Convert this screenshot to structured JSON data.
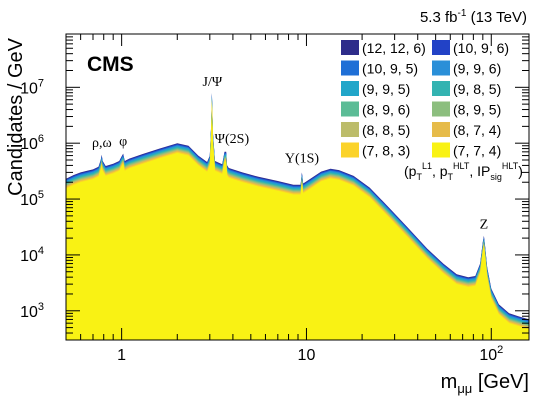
{
  "chart_data": {
    "type": "area",
    "experiment": "CMS",
    "lumi": {
      "value": "5.3 fb",
      "exponent": "-1",
      "energy": "(13 TeV)"
    },
    "xlabel": "m",
    "xlabel_sub": "μμ",
    "xlabel_unit": "[GeV]",
    "ylabel": "Candidates / GeV",
    "xscale": "log",
    "yscale": "log",
    "xlim": [
      0.5,
      160
    ],
    "ylim": [
      300,
      90000000
    ],
    "x_ticks": [
      {
        "value": 1,
        "label": "1"
      },
      {
        "value": 10,
        "label": "10"
      },
      {
        "value": 100,
        "label": "10",
        "exp": "2"
      }
    ],
    "y_ticks": [
      {
        "value": 1000,
        "label": "10",
        "exp": "3"
      },
      {
        "value": 10000,
        "label": "10",
        "exp": "4"
      },
      {
        "value": 100000,
        "label": "10",
        "exp": "5"
      },
      {
        "value": 1000000,
        "label": "10",
        "exp": "6"
      },
      {
        "value": 10000000,
        "label": "10",
        "exp": "7"
      }
    ],
    "legend_placement": "top-right",
    "legend_title": [
      "(p",
      "T",
      "L1",
      ", p",
      "T",
      "HLT",
      ", IP",
      "sig",
      "HLT",
      ")"
    ],
    "series": [
      {
        "name": "(12, 12, 6)",
        "color": "#2e2c8a",
        "frac": 1.0
      },
      {
        "name": "(10, 9, 6)",
        "color": "#2242c6",
        "frac": 0.97
      },
      {
        "name": "(10, 9, 5)",
        "color": "#1f6fd6",
        "frac": 0.94
      },
      {
        "name": "(9, 9, 6)",
        "color": "#2a8fd8",
        "frac": 0.91
      },
      {
        "name": "(9, 9, 5)",
        "color": "#21a6c9",
        "frac": 0.88
      },
      {
        "name": "(9, 8, 5)",
        "color": "#33b3b1",
        "frac": 0.85
      },
      {
        "name": "(8, 9, 6)",
        "color": "#5bbc96",
        "frac": 0.82
      },
      {
        "name": "(8, 9, 5)",
        "color": "#8cbe7e",
        "frac": 0.79
      },
      {
        "name": "(8, 8, 5)",
        "color": "#bcbc6a",
        "frac": 0.76
      },
      {
        "name": "(8, 7, 4)",
        "color": "#e6bb49",
        "frac": 0.73
      },
      {
        "name": "(7, 8, 3)",
        "color": "#fbd32a",
        "frac": 0.7
      },
      {
        "name": "(7, 7, 4)",
        "color": "#f9f214",
        "frac": 0.67
      }
    ],
    "envelope": [
      [
        0.5,
        230000
      ],
      [
        0.55,
        270000
      ],
      [
        0.6,
        300000
      ],
      [
        0.65,
        320000
      ],
      [
        0.7,
        340000
      ],
      [
        0.75,
        380000
      ],
      [
        0.77,
        500000
      ],
      [
        0.78,
        620000
      ],
      [
        0.79,
        480000
      ],
      [
        0.82,
        390000
      ],
      [
        0.9,
        430000
      ],
      [
        0.97,
        480000
      ],
      [
        1.0,
        580000
      ],
      [
        1.02,
        650000
      ],
      [
        1.04,
        480000
      ],
      [
        1.1,
        530000
      ],
      [
        1.3,
        640000
      ],
      [
        1.6,
        800000
      ],
      [
        2.0,
        1000000
      ],
      [
        2.3,
        900000
      ],
      [
        2.6,
        600000
      ],
      [
        2.9,
        460000
      ],
      [
        3.0,
        600000
      ],
      [
        3.05,
        2000000
      ],
      [
        3.08,
        8000000
      ],
      [
        3.12,
        1500000
      ],
      [
        3.2,
        480000
      ],
      [
        3.5,
        420000
      ],
      [
        3.6,
        700000
      ],
      [
        3.68,
        700000
      ],
      [
        3.72,
        400000
      ],
      [
        3.8,
        360000
      ],
      [
        4.5,
        300000
      ],
      [
        5.5,
        250000
      ],
      [
        7.0,
        210000
      ],
      [
        8.5,
        180000
      ],
      [
        9.3,
        180000
      ],
      [
        9.45,
        300000
      ],
      [
        9.6,
        190000
      ],
      [
        10.5,
        230000
      ],
      [
        12.0,
        310000
      ],
      [
        13.5,
        350000
      ],
      [
        15.0,
        330000
      ],
      [
        18.0,
        260000
      ],
      [
        22.0,
        160000
      ],
      [
        28.0,
        70000
      ],
      [
        35.0,
        32000
      ],
      [
        45.0,
        13000
      ],
      [
        55.0,
        7000
      ],
      [
        65.0,
        4500
      ],
      [
        75.0,
        4000
      ],
      [
        82.0,
        4200
      ],
      [
        87.0,
        7000
      ],
      [
        90.0,
        17000
      ],
      [
        91.2,
        22000
      ],
      [
        92.5,
        15000
      ],
      [
        95.0,
        6000
      ],
      [
        100.0,
        2500
      ],
      [
        110.0,
        1300
      ],
      [
        125.0,
        900
      ],
      [
        140.0,
        800
      ],
      [
        160.0,
        700
      ]
    ],
    "annotations": [
      {
        "text": "ρ,ω",
        "x": 0.782,
        "y": 850000
      },
      {
        "text": "φ",
        "x": 1.02,
        "y": 900000
      },
      {
        "text": "J/Ψ",
        "x": 3.097,
        "y": 10500000
      },
      {
        "text": "Ψ(2S)",
        "x": 3.95,
        "y": 1000000
      },
      {
        "text": "Υ(1S)",
        "x": 9.46,
        "y": 450000
      },
      {
        "text": "Z",
        "x": 91.2,
        "y": 30000
      }
    ]
  }
}
